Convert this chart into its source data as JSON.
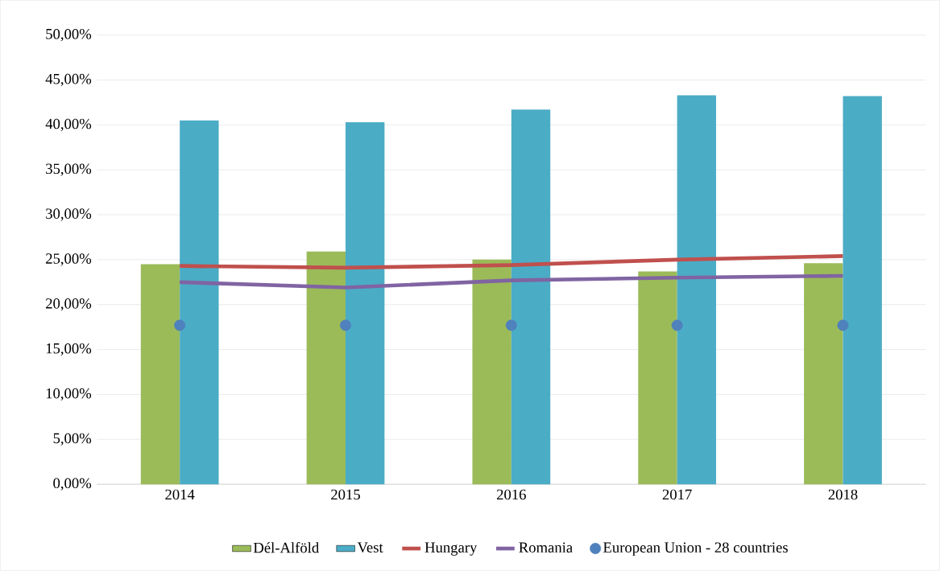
{
  "chart_data": {
    "type": "bar",
    "categories": [
      "2014",
      "2015",
      "2016",
      "2017",
      "2018"
    ],
    "series": [
      {
        "name": "Dél-Alföld",
        "color": "#9bbb59",
        "values": [
          24.5,
          25.9,
          25.0,
          23.7,
          24.6
        ]
      },
      {
        "name": "Vest",
        "color": "#4bacc6",
        "values": [
          40.5,
          40.3,
          41.7,
          43.3,
          43.2
        ]
      },
      {
        "name": "Hungary",
        "type": "line",
        "color": "#c0504d",
        "values": [
          24.3,
          24.1,
          24.4,
          25.0,
          25.4
        ]
      },
      {
        "name": "Romania",
        "type": "line",
        "color": "#8064a2",
        "values": [
          22.5,
          21.9,
          22.7,
          23.0,
          23.2
        ]
      },
      {
        "name": "European Union - 28 countries",
        "type": "scatter",
        "color": "#4f81bd",
        "values": [
          17.7,
          17.7,
          17.7,
          17.7,
          17.7
        ]
      }
    ],
    "ylim": [
      0,
      50
    ],
    "yticks": [
      {
        "value": 0,
        "label": "0,00%"
      },
      {
        "value": 5,
        "label": "5,00%"
      },
      {
        "value": 10,
        "label": "10,00%"
      },
      {
        "value": 15,
        "label": "15,00%"
      },
      {
        "value": 20,
        "label": "20,00%"
      },
      {
        "value": 25,
        "label": "25,00%"
      },
      {
        "value": 30,
        "label": "30,00%"
      },
      {
        "value": 35,
        "label": "35,00%"
      },
      {
        "value": 40,
        "label": "40,00%"
      },
      {
        "value": 45,
        "label": "45,00%"
      },
      {
        "value": 50,
        "label": "50,00%"
      }
    ],
    "grid": "y",
    "legend": "bottom"
  }
}
